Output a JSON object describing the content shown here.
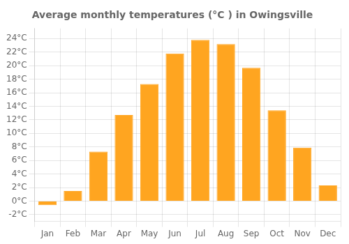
{
  "chart_data": {
    "type": "bar",
    "title": "Average monthly temperatures (°C ) in Owingsville",
    "categories": [
      "Jan",
      "Feb",
      "Mar",
      "Apr",
      "May",
      "Jun",
      "Jul",
      "Aug",
      "Sep",
      "Oct",
      "Nov",
      "Dec"
    ],
    "values": [
      -0.6,
      1.5,
      7.3,
      12.7,
      17.3,
      21.8,
      23.8,
      23.2,
      19.7,
      13.4,
      7.9,
      2.3
    ],
    "color": "#FFA520",
    "ylim": [
      -3,
      25.5
    ],
    "yticks": [
      {
        "value": -2,
        "label": "-2°C"
      },
      {
        "value": 0,
        "label": "0°C"
      },
      {
        "value": 2,
        "label": "2°C"
      },
      {
        "value": 4,
        "label": "4°C"
      },
      {
        "value": 6,
        "label": "6°C"
      },
      {
        "value": 8,
        "label": "8°C"
      },
      {
        "value": 10,
        "label": "10°C"
      },
      {
        "value": 12,
        "label": "12°C"
      },
      {
        "value": 14,
        "label": "14°C"
      },
      {
        "value": 16,
        "label": "16°C"
      },
      {
        "value": 18,
        "label": "18°C"
      },
      {
        "value": 20,
        "label": "20°C"
      },
      {
        "value": 22,
        "label": "22°C"
      },
      {
        "value": 24,
        "label": "24°C"
      }
    ],
    "grid": true
  }
}
